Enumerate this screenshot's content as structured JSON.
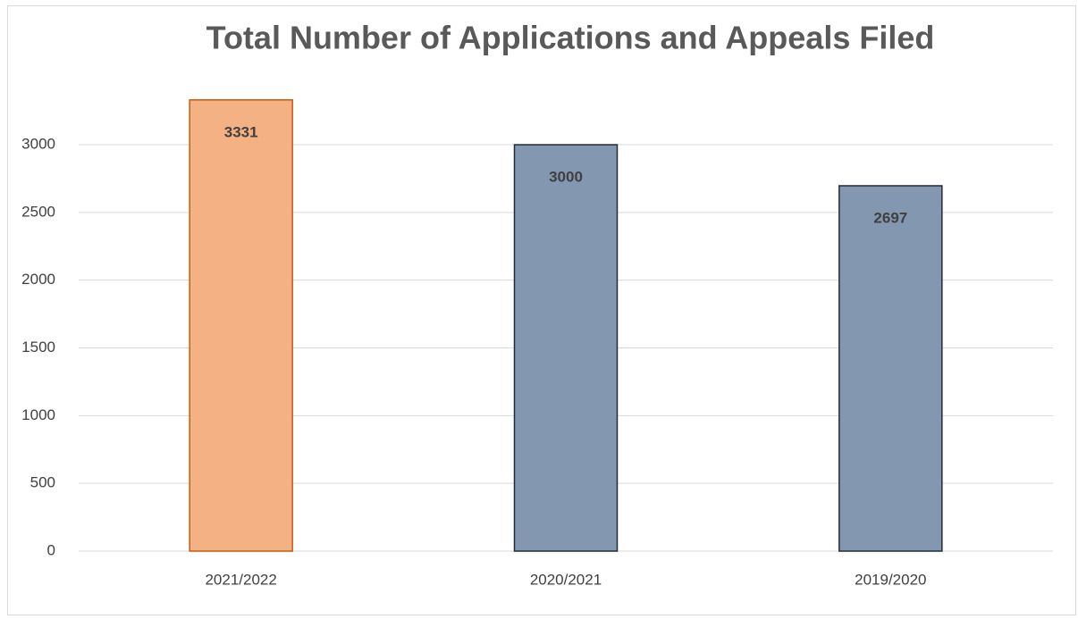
{
  "chart_data": {
    "type": "bar",
    "title": "Total Number of Applications and Appeals Filed",
    "categories": [
      "2021/2022",
      "2020/2021",
      "2019/2020"
    ],
    "values": [
      3331,
      3000,
      2697
    ],
    "colors": [
      "#f4b183",
      "#8497b0",
      "#8497b0"
    ],
    "edge_colors": [
      "#c55a11",
      "#222a35",
      "#222a35"
    ],
    "ylim": [
      0,
      3500
    ],
    "yticks": [
      0,
      500,
      1000,
      1500,
      2000,
      2500,
      3000
    ],
    "grid": true
  }
}
